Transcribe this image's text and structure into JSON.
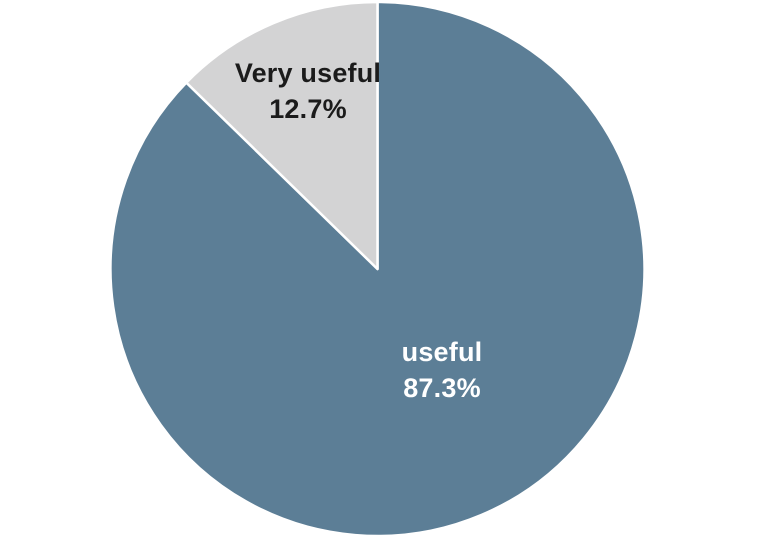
{
  "page": {
    "background_color": "#ffffff"
  },
  "chart_data": {
    "type": "pie",
    "title": "",
    "start_angle_deg": 0,
    "direction": "clockwise",
    "legend": "none",
    "labels_position": "inside",
    "slice_border_color": "#ffffff",
    "segments": [
      {
        "label": "useful",
        "value_pct": 87.3,
        "display_value": "87.3%",
        "color": "#5C7E96",
        "label_color": "#ffffff"
      },
      {
        "label": "Very useful",
        "value_pct": 12.7,
        "display_value": "12.7%",
        "color": "#D3D3D4",
        "label_color": "#1B1B1B"
      }
    ]
  }
}
